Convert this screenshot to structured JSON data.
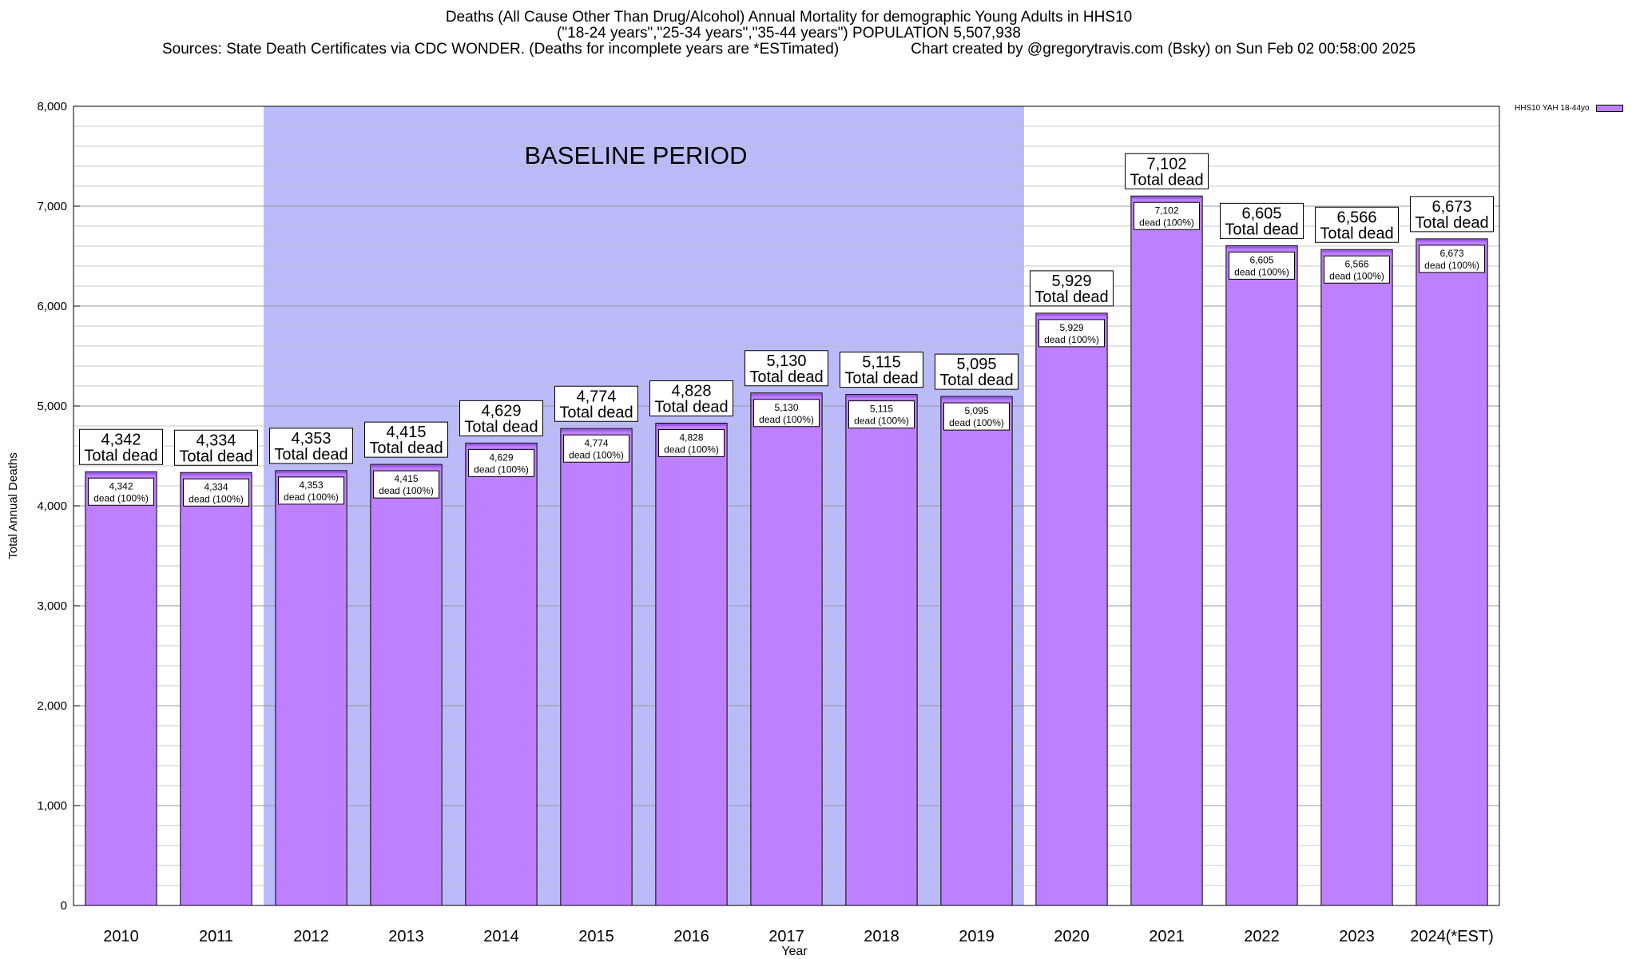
{
  "title": {
    "line1": "Deaths (All Cause Other Than Drug/Alcohol) Annual Mortality for demographic Young Adults in HHS10",
    "line2": "(\"18-24 years\",\"25-34 years\",\"35-44 years\") POPULATION 5,507,938",
    "sources": "Sources: State Death Certificates via CDC WONDER. (Deaths for incomplete years are *ESTimated)",
    "credit": "Chart created by @gregorytravis.com (Bsky) on Sun Feb 02 00:58:00 2025"
  },
  "colors": {
    "bar": "#bf80ff",
    "bar_cap": "#9b5de5",
    "baseline_band": "#bbbbf9",
    "grid": "#b8b8b8"
  },
  "chart_data": {
    "type": "bar",
    "categories": [
      "2010",
      "2011",
      "2012",
      "2013",
      "2014",
      "2015",
      "2016",
      "2017",
      "2018",
      "2019",
      "2020",
      "2021",
      "2022",
      "2023",
      "2024(*EST)"
    ],
    "series": [
      {
        "name": "HHS10 YAH 18-44yo",
        "values": [
          4342,
          4334,
          4353,
          4415,
          4629,
          4774,
          4828,
          5130,
          5115,
          5095,
          5929,
          7102,
          6605,
          6566,
          6673
        ]
      }
    ],
    "value_labels": [
      "4,342",
      "4,334",
      "4,353",
      "4,415",
      "4,629",
      "4,774",
      "4,828",
      "5,130",
      "5,115",
      "5,095",
      "5,929",
      "7,102",
      "6,605",
      "6,566",
      "6,673"
    ],
    "total_label": "Total dead",
    "inner_label": "dead (100%)",
    "xlabel": "Year",
    "ylabel": "Total Annual Deaths",
    "ylim": [
      0,
      8000
    ],
    "yticks": [
      0,
      1000,
      2000,
      3000,
      4000,
      5000,
      6000,
      7000,
      8000
    ],
    "ytick_labels": [
      "0",
      "1,000",
      "2,000",
      "3,000",
      "4,000",
      "5,000",
      "6,000",
      "7,000",
      "8,000"
    ],
    "grid": true,
    "legend_placement": "top-right",
    "annotation": {
      "text": "BASELINE PERIOD",
      "from_category": "2012",
      "to_category": "2019"
    }
  }
}
